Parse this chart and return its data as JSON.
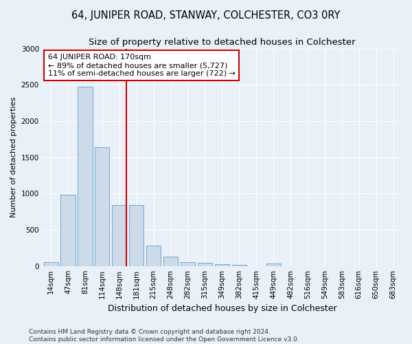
{
  "title": "64, JUNIPER ROAD, STANWAY, COLCHESTER, CO3 0RY",
  "subtitle": "Size of property relative to detached houses in Colchester",
  "xlabel": "Distribution of detached houses by size in Colchester",
  "ylabel": "Number of detached properties",
  "categories": [
    "14sqm",
    "47sqm",
    "81sqm",
    "114sqm",
    "148sqm",
    "181sqm",
    "215sqm",
    "248sqm",
    "282sqm",
    "315sqm",
    "349sqm",
    "382sqm",
    "415sqm",
    "449sqm",
    "482sqm",
    "516sqm",
    "549sqm",
    "583sqm",
    "616sqm",
    "650sqm",
    "683sqm"
  ],
  "bar_heights": [
    55,
    980,
    2470,
    1640,
    840,
    840,
    280,
    130,
    50,
    40,
    25,
    15,
    0,
    35,
    0,
    0,
    0,
    0,
    0,
    0,
    0
  ],
  "bar_color": "#ccdaea",
  "bar_edge_color": "#6baad5",
  "ylim": [
    0,
    3000
  ],
  "yticks": [
    0,
    500,
    1000,
    1500,
    2000,
    2500,
    3000
  ],
  "vline_x": 4.42,
  "vline_color": "#cc0000",
  "annotation_text": "64 JUNIPER ROAD: 170sqm\n← 89% of detached houses are smaller (5,727)\n11% of semi-detached houses are larger (722) →",
  "annotation_box_color": "#ffffff",
  "annotation_box_edge": "#cc0000",
  "footer_text": "Contains HM Land Registry data © Crown copyright and database right 2024.\nContains public sector information licensed under the Open Government Licence v3.0.",
  "background_color": "#eaf0f8",
  "grid_color": "#ffffff",
  "title_fontsize": 10.5,
  "subtitle_fontsize": 9.5,
  "xlabel_fontsize": 9,
  "ylabel_fontsize": 8,
  "tick_fontsize": 7.5,
  "annotation_fontsize": 8,
  "footer_fontsize": 6.5
}
